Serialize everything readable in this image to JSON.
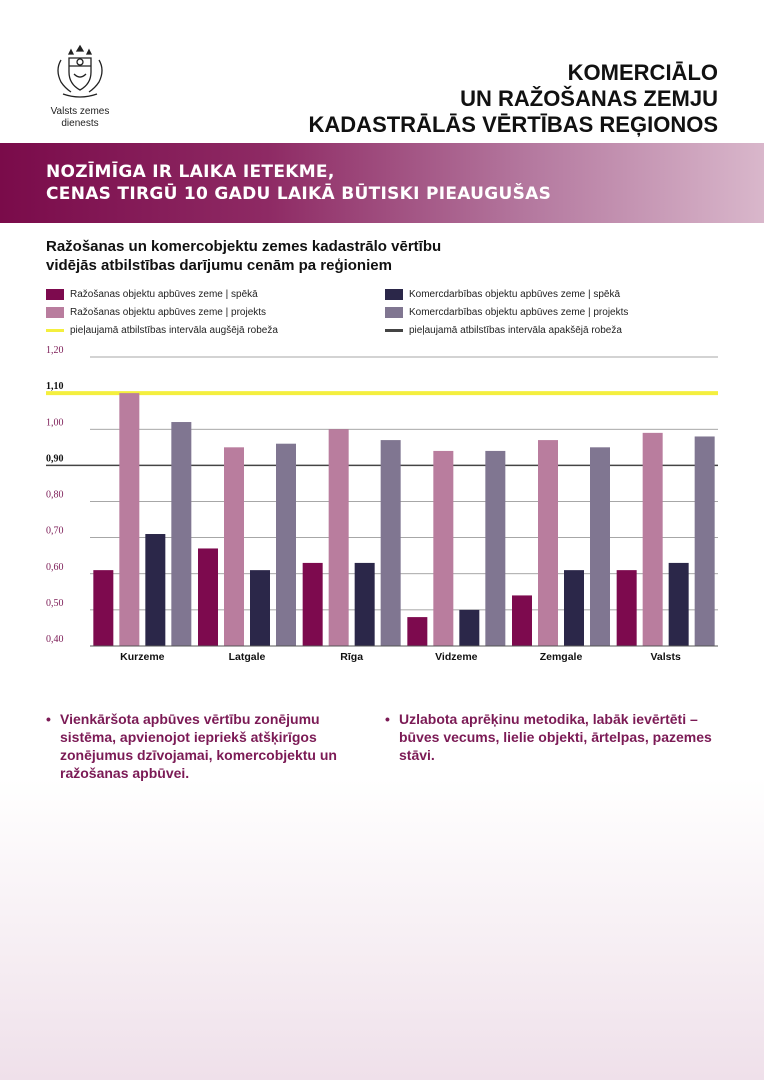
{
  "header": {
    "logo_text_line1": "Valsts zemes",
    "logo_text_line2": "dienests",
    "title_line1": "KOMERCIĀLO",
    "title_line2": "UN RAŽOŠANAS ZEMJU",
    "title_line3": "KADASTRĀLĀS VĒRTĪBAS REĢIONOS"
  },
  "banner": {
    "line1": "NOZĪMĪGA IR LAIKA IETEKME,",
    "line2": "CENAS TIRGŪ 10 GADU LAIKĀ BŪTISKI PIEAUGUŠAS"
  },
  "colors": {
    "s1": "#7d0a4e",
    "s2": "#b97d9e",
    "s3": "#2b2749",
    "s4": "#807691",
    "upper": "#f4ef3e",
    "lower": "#444444",
    "bullet": "#7b1a55"
  },
  "chart_data": {
    "type": "bar",
    "title_line1": "Ražošanas un komercobjektu zemes kadastrālo vērtību",
    "title_line2": "vidējās atbilstības darījumu cenām pa reģioniem",
    "categories": [
      "Kurzeme",
      "Latgale",
      "Rīga",
      "Vidzeme",
      "Zemgale",
      "Valsts"
    ],
    "series": [
      {
        "name": "Ražošanas objektu apbūves zeme | spēkā",
        "values": [
          0.61,
          0.67,
          0.63,
          0.48,
          0.54,
          0.61
        ]
      },
      {
        "name": "Ražošanas objektu apbūves zeme | projekts",
        "values": [
          1.1,
          0.95,
          1.0,
          0.94,
          0.97,
          0.99
        ]
      },
      {
        "name": "Komercdarbības objektu apbūves zeme | spēkā",
        "values": [
          0.71,
          0.61,
          0.63,
          0.5,
          0.61,
          0.63
        ]
      },
      {
        "name": "Komercdarbības objektu apbūves zeme | projekts",
        "values": [
          1.02,
          0.96,
          0.97,
          0.94,
          0.95,
          0.98
        ]
      }
    ],
    "reference_lines": [
      {
        "name": "pieļaujamā atbilstības intervāla augšējā robeža",
        "value": 1.1,
        "label": "1,10"
      },
      {
        "name": "pieļaujamā atbilstības intervāla apakšējā robeža",
        "value": 0.9,
        "label": "0,90"
      }
    ],
    "ylim": [
      0.4,
      1.2
    ],
    "yticks": [
      "0,40",
      "0,50",
      "0,60",
      "0,70",
      "0,80",
      "0,90",
      "1,00",
      "1,10",
      "1,20"
    ],
    "grid": true,
    "legend_position": "top"
  },
  "bullets": [
    "Vienkāršota apbūves vērtību zonējumu sistēma, apvienojot iepriekš atšķirīgos zonējumus dzīvojamai, komercobjektu un ražošanas apbūvei.",
    "Uzlabota aprēķinu metodika, labāk ievērtēti – būves vecums, lielie objekti, ārtelpas, pazemes stāvi."
  ],
  "bullet_glyph": "•"
}
